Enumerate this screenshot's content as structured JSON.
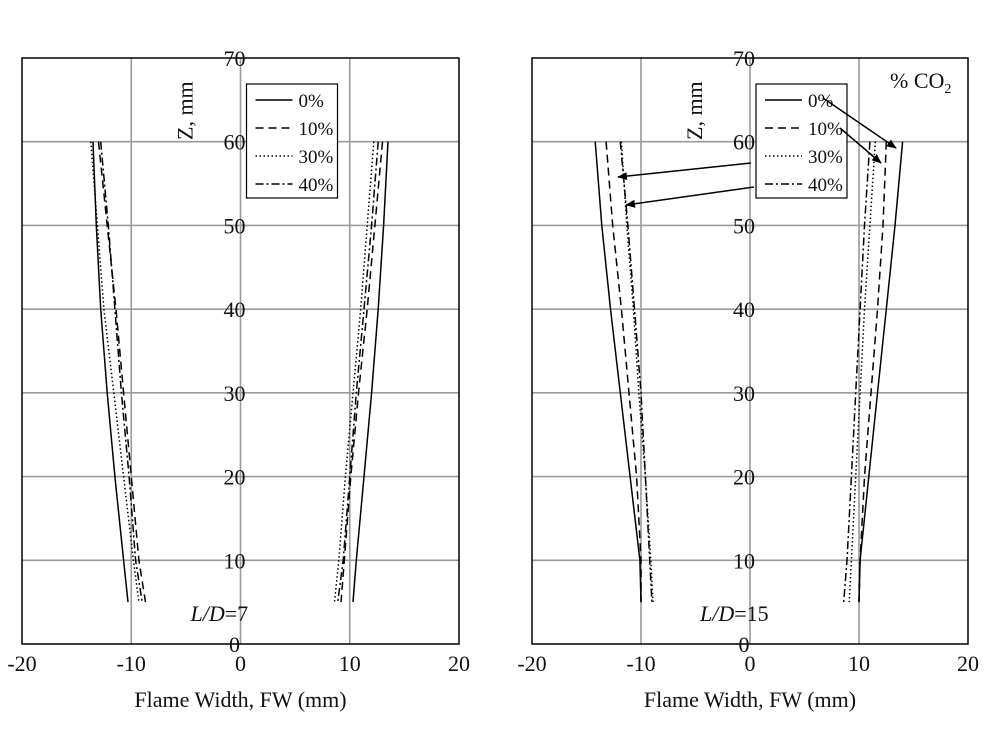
{
  "chart_data": [
    {
      "type": "line",
      "annotation": {
        "italic": "L/D",
        "rest": "=7"
      },
      "xlabel": "Flame Width, FW (mm)",
      "ylabel": "Z, mm",
      "xlim": [
        -20,
        20
      ],
      "ylim": [
        0,
        70
      ],
      "xticks": [
        -20,
        -10,
        0,
        10,
        20
      ],
      "yticks": [
        0,
        10,
        20,
        30,
        40,
        50,
        60,
        70
      ],
      "grid": true,
      "legend_position": "top-center",
      "series": [
        {
          "name": "0%",
          "style": "solid",
          "left": [
            [
              -13.5,
              60
            ],
            [
              -13.2,
              50
            ],
            [
              -12.8,
              40
            ],
            [
              -12.2,
              30
            ],
            [
              -11.5,
              20
            ],
            [
              -10.7,
              10
            ],
            [
              -10.3,
              5
            ]
          ],
          "right": [
            [
              13.5,
              60
            ],
            [
              13.1,
              50
            ],
            [
              12.6,
              40
            ],
            [
              12.0,
              30
            ],
            [
              11.3,
              20
            ],
            [
              10.6,
              10
            ],
            [
              10.3,
              5
            ]
          ]
        },
        {
          "name": "10%",
          "style": "dashed",
          "left": [
            [
              -13.0,
              60
            ],
            [
              -12.2,
              50
            ],
            [
              -11.4,
              40
            ],
            [
              -10.7,
              30
            ],
            [
              -10.0,
              20
            ],
            [
              -9.3,
              10
            ],
            [
              -8.7,
              5
            ]
          ],
          "right": [
            [
              13.0,
              60
            ],
            [
              12.3,
              50
            ],
            [
              11.6,
              40
            ],
            [
              10.8,
              30
            ],
            [
              10.1,
              20
            ],
            [
              9.5,
              10
            ],
            [
              9.2,
              5
            ]
          ]
        },
        {
          "name": "30%",
          "style": "dotted",
          "left": [
            [
              -13.7,
              60
            ],
            [
              -13.1,
              50
            ],
            [
              -12.5,
              40
            ],
            [
              -11.6,
              30
            ],
            [
              -10.7,
              20
            ],
            [
              -9.8,
              10
            ],
            [
              -9.3,
              5
            ]
          ],
          "right": [
            [
              12.2,
              60
            ],
            [
              11.6,
              50
            ],
            [
              11.0,
              40
            ],
            [
              10.3,
              30
            ],
            [
              9.6,
              20
            ],
            [
              9.0,
              10
            ],
            [
              8.6,
              5
            ]
          ]
        },
        {
          "name": "40%",
          "style": "dashdot",
          "left": [
            [
              -12.8,
              60
            ],
            [
              -12.1,
              50
            ],
            [
              -11.5,
              40
            ],
            [
              -10.9,
              30
            ],
            [
              -10.2,
              20
            ],
            [
              -9.6,
              10
            ],
            [
              -9.0,
              5
            ]
          ],
          "right": [
            [
              12.6,
              60
            ],
            [
              12.0,
              50
            ],
            [
              11.3,
              40
            ],
            [
              10.6,
              30
            ],
            [
              10.0,
              20
            ],
            [
              9.4,
              10
            ],
            [
              8.9,
              5
            ]
          ]
        }
      ]
    },
    {
      "type": "line",
      "annotation": {
        "italic": "L/D",
        "rest": "=15"
      },
      "legend_title": "% CO",
      "legend_title_sub": "2",
      "xlabel": "Flame Width, FW (mm)",
      "ylabel": "Z, mm",
      "xlim": [
        -20,
        20
      ],
      "ylim": [
        0,
        70
      ],
      "xticks": [
        -20,
        -10,
        0,
        10,
        20
      ],
      "yticks": [
        0,
        10,
        20,
        30,
        40,
        50,
        60,
        70
      ],
      "grid": true,
      "legend_position": "top-center",
      "series": [
        {
          "name": "0%",
          "style": "solid",
          "left": [
            [
              -14.2,
              60
            ],
            [
              -13.6,
              50
            ],
            [
              -12.8,
              40
            ],
            [
              -11.9,
              30
            ],
            [
              -11.0,
              20
            ],
            [
              -10.1,
              10
            ],
            [
              -10.0,
              5
            ]
          ],
          "right": [
            [
              14.0,
              60
            ],
            [
              13.3,
              50
            ],
            [
              12.5,
              40
            ],
            [
              11.7,
              30
            ],
            [
              10.9,
              20
            ],
            [
              10.1,
              10
            ],
            [
              10.0,
              5
            ]
          ]
        },
        {
          "name": "10%",
          "style": "dashed",
          "left": [
            [
              -13.2,
              60
            ],
            [
              -12.6,
              50
            ],
            [
              -11.8,
              40
            ],
            [
              -11.1,
              30
            ],
            [
              -10.4,
              20
            ],
            [
              -10.0,
              10
            ],
            [
              -10.0,
              5
            ]
          ],
          "right": [
            [
              12.5,
              60
            ],
            [
              12.2,
              50
            ],
            [
              11.7,
              40
            ],
            [
              11.1,
              30
            ],
            [
              10.5,
              20
            ],
            [
              10.1,
              10
            ],
            [
              10.0,
              5
            ]
          ]
        },
        {
          "name": "30%",
          "style": "dotted",
          "left": [
            [
              -11.8,
              60
            ],
            [
              -11.3,
              50
            ],
            [
              -10.7,
              40
            ],
            [
              -10.2,
              30
            ],
            [
              -9.6,
              20
            ],
            [
              -9.1,
              10
            ],
            [
              -8.9,
              5
            ]
          ],
          "right": [
            [
              11.5,
              60
            ],
            [
              11.0,
              50
            ],
            [
              10.5,
              40
            ],
            [
              10.1,
              30
            ],
            [
              9.7,
              20
            ],
            [
              9.3,
              10
            ],
            [
              9.1,
              5
            ]
          ]
        },
        {
          "name": "40%",
          "style": "dashdot",
          "left": [
            [
              -11.9,
              60
            ],
            [
              -11.2,
              50
            ],
            [
              -10.6,
              40
            ],
            [
              -10.0,
              30
            ],
            [
              -9.6,
              20
            ],
            [
              -9.2,
              10
            ],
            [
              -9.0,
              5
            ]
          ],
          "right": [
            [
              11.0,
              60
            ],
            [
              10.5,
              50
            ],
            [
              10.1,
              40
            ],
            [
              9.7,
              30
            ],
            [
              9.3,
              20
            ],
            [
              8.9,
              10
            ],
            [
              8.6,
              5
            ]
          ]
        }
      ]
    }
  ],
  "colors": {
    "axis": "#000000",
    "grid": "#9a9a9a",
    "line": "#000000",
    "background": "#ffffff"
  }
}
